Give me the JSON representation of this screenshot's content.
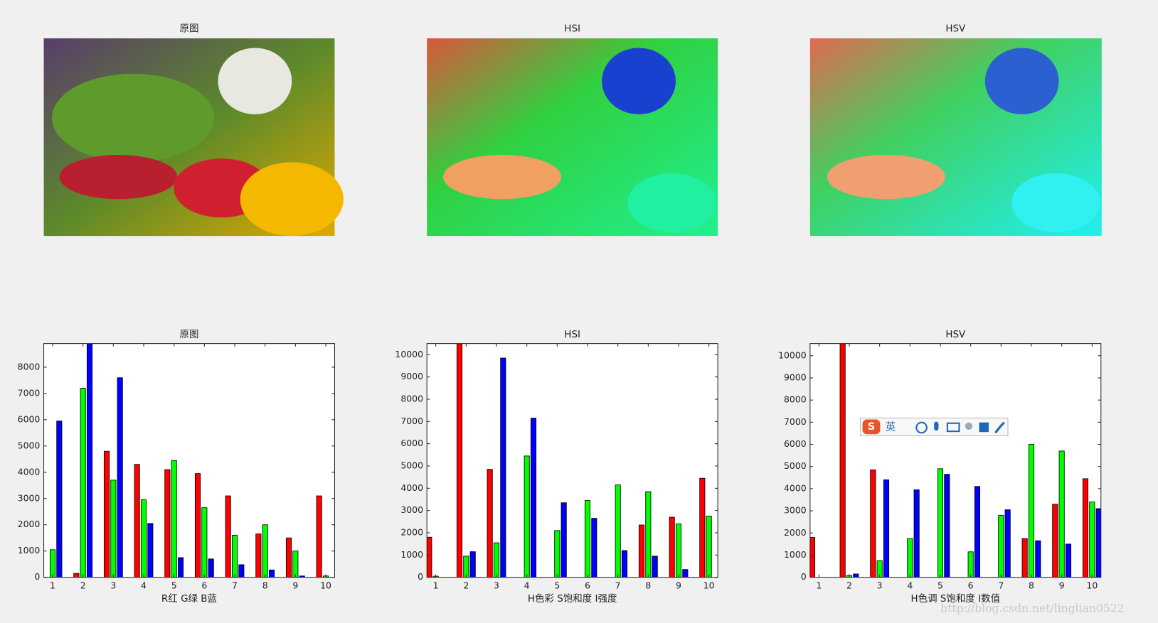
{
  "images": [
    {
      "title": "原图"
    },
    {
      "title": "HSI"
    },
    {
      "title": "HSV"
    }
  ],
  "chart_data": [
    {
      "type": "bar",
      "title": "原图",
      "xlabel": "R红 G绿 B蓝",
      "categories": [
        1,
        2,
        3,
        4,
        5,
        6,
        7,
        8,
        9,
        10
      ],
      "series": [
        {
          "color": "#ff0000",
          "values": [
            0,
            150,
            4800,
            4300,
            4100,
            3950,
            3100,
            1650,
            1500,
            3100
          ]
        },
        {
          "color": "#00ff00",
          "values": [
            1050,
            7200,
            3700,
            2950,
            4450,
            2650,
            1600,
            2000,
            1000,
            50
          ]
        },
        {
          "color": "#0000ff",
          "values": [
            5950,
            8900,
            7600,
            2050,
            750,
            700,
            480,
            280,
            50,
            0
          ]
        }
      ],
      "ylim": [
        0,
        8900
      ],
      "yticks": [
        0,
        1000,
        2000,
        3000,
        4000,
        5000,
        6000,
        7000,
        8000
      ]
    },
    {
      "type": "bar",
      "title": "HSI",
      "xlabel": "H色彩 S饱和度 I强度",
      "categories": [
        1,
        2,
        3,
        4,
        5,
        6,
        7,
        8,
        9,
        10
      ],
      "series": [
        {
          "color": "#ff0000",
          "values": [
            1800,
            10500,
            4850,
            0,
            0,
            0,
            0,
            2350,
            2700,
            4450
          ]
        },
        {
          "color": "#00ff00",
          "values": [
            50,
            950,
            1550,
            5450,
            2100,
            3450,
            4150,
            3850,
            2400,
            2750
          ]
        },
        {
          "color": "#0000ff",
          "values": [
            0,
            1150,
            9850,
            7150,
            3350,
            2650,
            1200,
            950,
            350,
            0
          ]
        }
      ],
      "ylim": [
        0,
        10500
      ],
      "yticks": [
        0,
        1000,
        2000,
        3000,
        4000,
        5000,
        6000,
        7000,
        8000,
        9000,
        10000
      ]
    },
    {
      "type": "bar",
      "title": "HSV",
      "xlabel": "H色调 S饱和度 I数值",
      "categories": [
        1,
        2,
        3,
        4,
        5,
        6,
        7,
        8,
        9,
        10
      ],
      "series": [
        {
          "color": "#ff0000",
          "values": [
            1800,
            10550,
            4850,
            0,
            0,
            0,
            0,
            1750,
            3300,
            4450
          ]
        },
        {
          "color": "#00ff00",
          "values": [
            0,
            80,
            750,
            1750,
            4900,
            1150,
            2800,
            6000,
            5700,
            3400
          ]
        },
        {
          "color": "#0000ff",
          "values": [
            0,
            150,
            4400,
            3950,
            4650,
            4100,
            3050,
            1650,
            1500,
            3100
          ]
        }
      ],
      "ylim": [
        0,
        10550
      ],
      "yticks": [
        0,
        1000,
        2000,
        3000,
        4000,
        5000,
        6000,
        7000,
        8000,
        9000,
        10000
      ]
    }
  ],
  "ime_toolbar": {
    "label": "英"
  },
  "watermark": "http://blog.csdn.net/linglian0522"
}
